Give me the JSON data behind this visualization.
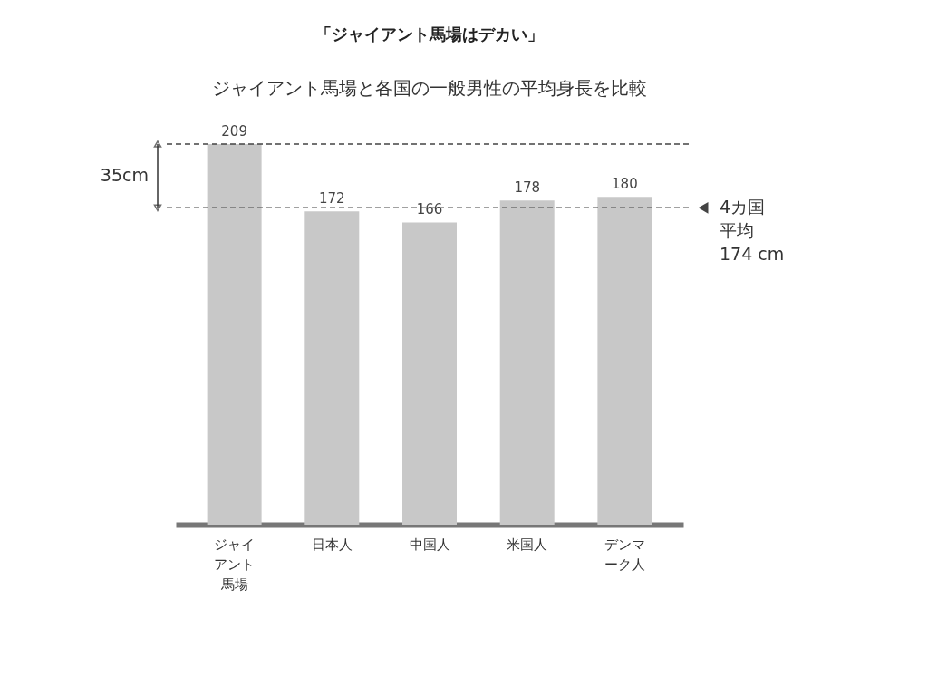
{
  "chart_data": {
    "type": "bar",
    "title": "「ジャイアント馬場はデカい」",
    "subtitle": "ジャイアント馬場と各国の一般男性の平均身長を比較",
    "categories": [
      "ジャイアント馬場",
      "日本人",
      "中国人",
      "米国人",
      "デンマーク人"
    ],
    "values": [
      209,
      172,
      166,
      178,
      180
    ],
    "color": "#c8c8c8",
    "data_labels": true,
    "ref_lines": [
      {
        "axis": "y",
        "value": 209,
        "label": null,
        "color": "#444444",
        "line_style": "dashed"
      },
      {
        "axis": "y",
        "value": 174,
        "label": "4カ国平均174 cm",
        "color": "#444444",
        "line_style": "dashed"
      }
    ],
    "annotations": [
      "35cm"
    ]
  }
}
